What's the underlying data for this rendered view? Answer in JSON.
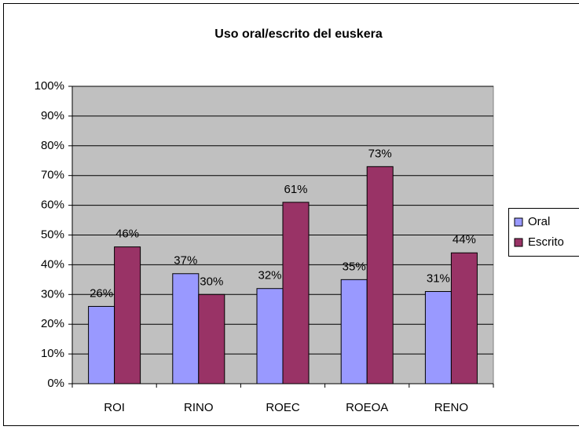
{
  "chart_data": {
    "type": "bar",
    "title": "Uso oral/escrito del euskera",
    "categories": [
      "ROI",
      "RINO",
      "ROEC",
      "ROEOA",
      "RENO"
    ],
    "series": [
      {
        "name": "Oral",
        "color": "#9999ff",
        "values": [
          26,
          37,
          32,
          35,
          31
        ],
        "value_labels": [
          "26%",
          "37%",
          "32%",
          "35%",
          "31%"
        ]
      },
      {
        "name": "Escrito",
        "color": "#993366",
        "values": [
          46,
          30,
          61,
          73,
          44
        ],
        "value_labels": [
          "46%",
          "30%",
          "61%",
          "73%",
          "44%"
        ]
      }
    ],
    "ylim": [
      0,
      100
    ],
    "yticks": [
      {
        "value": 0,
        "label": "0%"
      },
      {
        "value": 10,
        "label": "10%"
      },
      {
        "value": 20,
        "label": "20%"
      },
      {
        "value": 30,
        "label": "30%"
      },
      {
        "value": 40,
        "label": "40%"
      },
      {
        "value": 50,
        "label": "50%"
      },
      {
        "value": 60,
        "label": "60%"
      },
      {
        "value": 70,
        "label": "70%"
      },
      {
        "value": 80,
        "label": "80%"
      },
      {
        "value": 90,
        "label": "90%"
      },
      {
        "value": 100,
        "label": "100%"
      }
    ],
    "grid": true,
    "legend": "right"
  }
}
